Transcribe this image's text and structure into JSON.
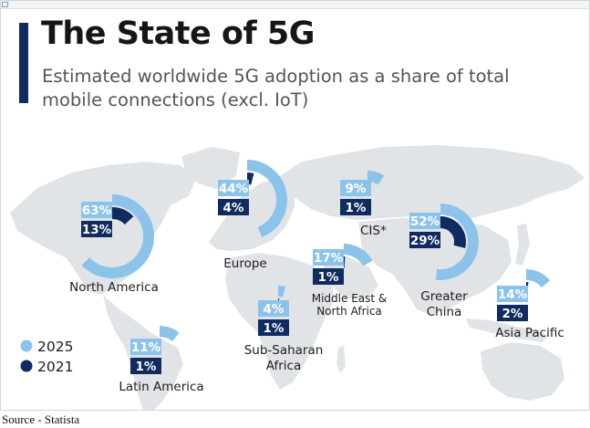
{
  "title": "The State of 5G",
  "subtitle": "Estimated worldwide 5G adoption as a share of total mobile connections (excl. IoT)",
  "source_caption": "Source - Statista",
  "colors": {
    "series_2025": "#8cc3ea",
    "series_2021": "#0f2b5f",
    "map": "#e1e4e7",
    "accent": "#0f2b5f"
  },
  "chart_data": {
    "type": "radial-bar map",
    "title": "The State of 5G",
    "subtitle": "Estimated worldwide 5G adoption as a share of total mobile connections (excl. IoT)",
    "legend": {
      "placement": "bottom-left",
      "entries": [
        "2025",
        "2021"
      ]
    },
    "series": [
      {
        "name": "2025",
        "values": [
          63,
          44,
          9,
          52,
          17,
          4,
          14,
          11
        ]
      },
      {
        "name": "2021",
        "values": [
          13,
          4,
          1,
          29,
          1,
          1,
          2,
          1
        ]
      }
    ],
    "regions": [
      {
        "name": "North America",
        "label_lines": [
          "North America"
        ],
        "v2025": 63,
        "v2021": 13,
        "text2025": "63%",
        "text2021": "13%"
      },
      {
        "name": "Europe",
        "label_lines": [
          "Europe"
        ],
        "v2025": 44,
        "v2021": 4,
        "text2025": "44%",
        "text2021": "4%"
      },
      {
        "name": "CIS*",
        "label_lines": [
          "CIS*"
        ],
        "v2025": 9,
        "v2021": 1,
        "text2025": "9%",
        "text2021": "1%"
      },
      {
        "name": "Greater China",
        "label_lines": [
          "Greater",
          "China"
        ],
        "v2025": 52,
        "v2021": 29,
        "text2025": "52%",
        "text2021": "29%"
      },
      {
        "name": "Middle East & North Africa",
        "label_lines": [
          "Middle East &",
          "North Africa"
        ],
        "v2025": 17,
        "v2021": 1,
        "text2025": "17%",
        "text2021": "1%"
      },
      {
        "name": "Sub-Saharan Africa",
        "label_lines": [
          "Sub-Saharan",
          "Africa"
        ],
        "v2025": 4,
        "v2021": 1,
        "text2025": "4%",
        "text2021": "1%"
      },
      {
        "name": "Asia Pacific",
        "label_lines": [
          "Asia Pacific"
        ],
        "v2025": 14,
        "v2021": 2,
        "text2025": "14%",
        "text2021": "2%"
      },
      {
        "name": "Latin America",
        "label_lines": [
          "Latin America"
        ],
        "v2025": 11,
        "v2021": 1,
        "text2025": "11%",
        "text2021": "1%"
      }
    ]
  }
}
